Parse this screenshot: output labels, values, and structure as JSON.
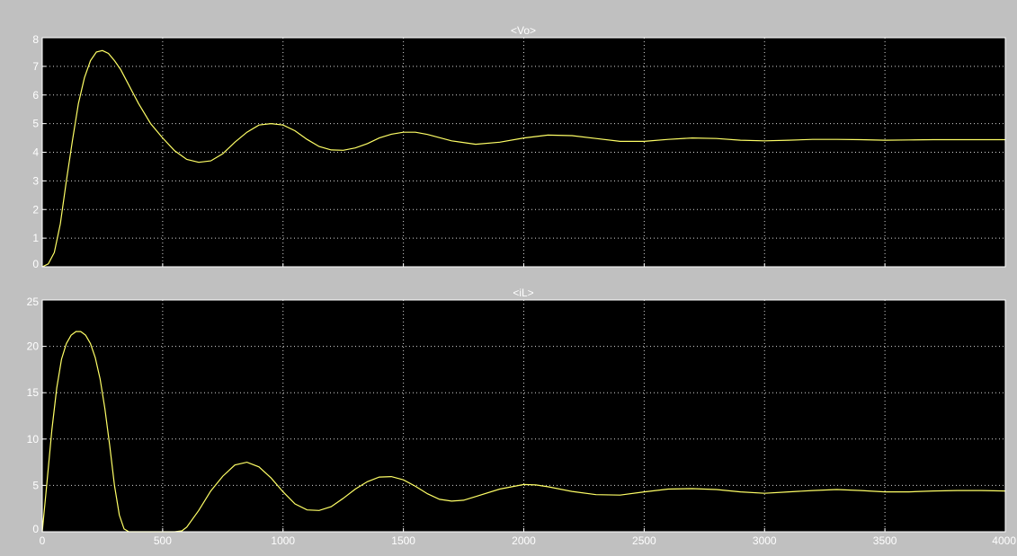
{
  "colors": {
    "figure_bg": "#c0c0c0",
    "axes_bg": "#000000",
    "axes_frame": "#ffffff",
    "grid": "#d8d8d8",
    "trace": "#ffff66",
    "text": "#ffffff"
  },
  "chart_data": [
    {
      "type": "line",
      "title": "<Vo>",
      "xlabel": "",
      "ylabel": "",
      "xlim": [
        0,
        4000
      ],
      "ylim": [
        0,
        8
      ],
      "xticks": [
        0,
        500,
        1000,
        1500,
        2000,
        2500,
        3000,
        3500,
        4000
      ],
      "xtick_labels": [],
      "yticks": [
        0,
        1,
        2,
        3,
        4,
        5,
        6,
        7,
        8
      ],
      "ytick_labels": [
        "0",
        "1",
        "2",
        "3",
        "4",
        "5",
        "6",
        "7",
        "8"
      ],
      "grid": true,
      "series": [
        {
          "x": [
            0,
            25,
            50,
            75,
            100,
            125,
            150,
            175,
            200,
            225,
            250,
            275,
            300,
            325,
            350,
            375,
            400,
            450,
            500,
            550,
            600,
            650,
            700,
            750,
            800,
            850,
            900,
            950,
            1000,
            1050,
            1100,
            1150,
            1200,
            1250,
            1300,
            1350,
            1400,
            1450,
            1500,
            1550,
            1600,
            1700,
            1800,
            1900,
            2000,
            2100,
            2200,
            2300,
            2400,
            2500,
            2600,
            2700,
            2800,
            2900,
            3000,
            3100,
            3200,
            3300,
            3400,
            3500,
            3600,
            3700,
            3800,
            3900,
            4000
          ],
          "y": [
            0,
            0.1,
            0.5,
            1.5,
            3.0,
            4.4,
            5.7,
            6.6,
            7.2,
            7.5,
            7.55,
            7.45,
            7.2,
            6.9,
            6.5,
            6.1,
            5.7,
            5.0,
            4.5,
            4.05,
            3.75,
            3.65,
            3.7,
            3.95,
            4.35,
            4.7,
            4.95,
            5.0,
            4.95,
            4.75,
            4.45,
            4.2,
            4.08,
            4.07,
            4.15,
            4.3,
            4.5,
            4.63,
            4.7,
            4.7,
            4.62,
            4.4,
            4.28,
            4.35,
            4.5,
            4.6,
            4.58,
            4.48,
            4.38,
            4.38,
            4.45,
            4.5,
            4.48,
            4.42,
            4.4,
            4.42,
            4.45,
            4.45,
            4.44,
            4.42,
            4.43,
            4.44,
            4.44,
            4.44,
            4.44
          ]
        }
      ]
    },
    {
      "type": "line",
      "title": "<iL>",
      "xlabel": "",
      "ylabel": "",
      "xlim": [
        0,
        4000
      ],
      "ylim": [
        0,
        25
      ],
      "xticks": [
        0,
        500,
        1000,
        1500,
        2000,
        2500,
        3000,
        3500,
        4000
      ],
      "xtick_labels": [
        "0",
        "500",
        "1000",
        "1500",
        "2000",
        "2500",
        "3000",
        "3500",
        "4000"
      ],
      "yticks": [
        0,
        5,
        10,
        15,
        20,
        25
      ],
      "ytick_labels": [
        "0",
        "5",
        "10",
        "15",
        "20",
        "25"
      ],
      "grid": true,
      "series": [
        {
          "x": [
            0,
            20,
            40,
            60,
            80,
            100,
            120,
            140,
            160,
            180,
            200,
            220,
            240,
            260,
            280,
            300,
            320,
            340,
            360,
            400,
            450,
            500,
            550,
            580,
            600,
            650,
            700,
            750,
            800,
            850,
            900,
            950,
            1000,
            1050,
            1100,
            1150,
            1200,
            1250,
            1300,
            1350,
            1400,
            1450,
            1500,
            1550,
            1600,
            1650,
            1700,
            1750,
            1800,
            1900,
            2000,
            2050,
            2100,
            2200,
            2300,
            2400,
            2500,
            2600,
            2700,
            2800,
            2900,
            3000,
            3100,
            3200,
            3300,
            3400,
            3500,
            3600,
            3700,
            3800,
            3900,
            4000
          ],
          "y": [
            0,
            5.5,
            11.0,
            15.5,
            18.6,
            20.3,
            21.2,
            21.6,
            21.6,
            21.2,
            20.3,
            18.8,
            16.5,
            13.3,
            9.3,
            5.0,
            1.8,
            0.3,
            0,
            0,
            0,
            0,
            0,
            0.1,
            0.5,
            2.3,
            4.4,
            6.0,
            7.2,
            7.5,
            7.0,
            5.8,
            4.3,
            3.0,
            2.35,
            2.3,
            2.7,
            3.6,
            4.6,
            5.4,
            5.9,
            5.95,
            5.6,
            4.9,
            4.1,
            3.5,
            3.3,
            3.4,
            3.8,
            4.6,
            5.1,
            5.05,
            4.85,
            4.35,
            4.0,
            3.95,
            4.3,
            4.6,
            4.65,
            4.55,
            4.3,
            4.15,
            4.3,
            4.45,
            4.55,
            4.45,
            4.3,
            4.3,
            4.4,
            4.45,
            4.45,
            4.4
          ]
        }
      ]
    }
  ]
}
